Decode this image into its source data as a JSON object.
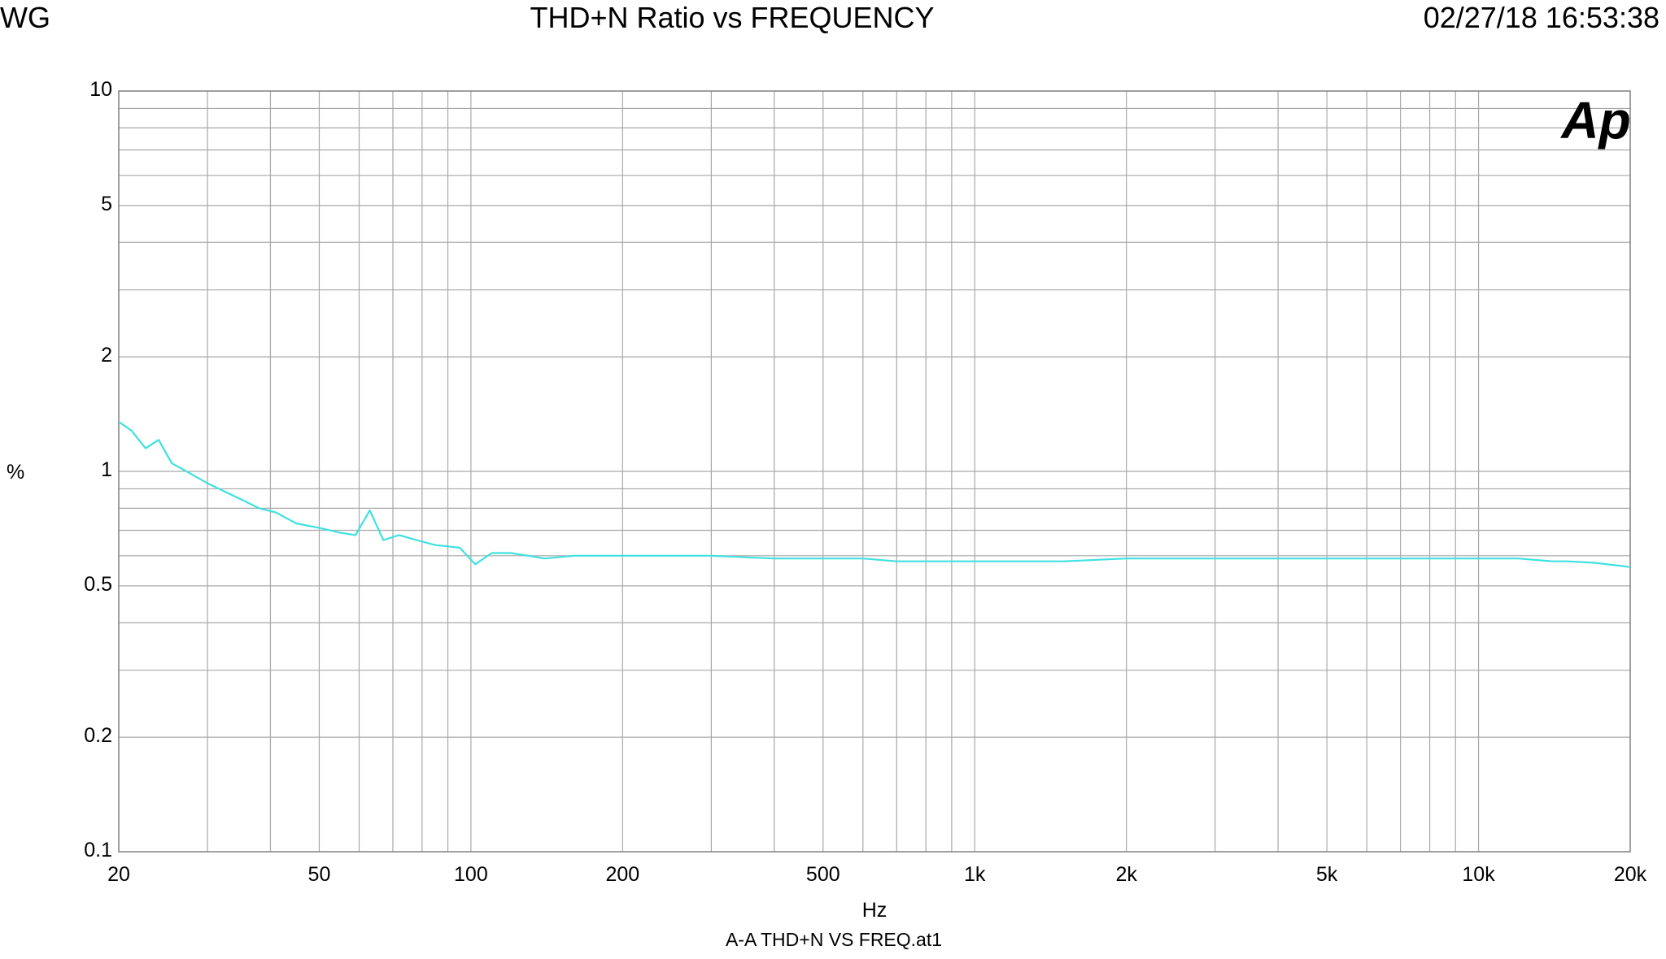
{
  "header": {
    "left": "WG",
    "title": "THD+N Ratio vs FREQUENCY",
    "timestamp": "02/27/18 16:53:38"
  },
  "logo": {
    "text": "Ap",
    "color": "#1a1ae6"
  },
  "chart_data": {
    "type": "line",
    "title": "THD+N Ratio vs FREQUENCY",
    "xlabel": "Hz",
    "ylabel": "%",
    "footer": "A-A THD+N VS FREQ.at1",
    "x_scale": "log",
    "y_scale": "log",
    "xlim": [
      20,
      20000
    ],
    "ylim": [
      0.1,
      10
    ],
    "grid": true,
    "x_ticks": [
      {
        "value": 20,
        "label": "20"
      },
      {
        "value": 50,
        "label": "50"
      },
      {
        "value": 100,
        "label": "100"
      },
      {
        "value": 200,
        "label": "200"
      },
      {
        "value": 500,
        "label": "500"
      },
      {
        "value": 1000,
        "label": "1k"
      },
      {
        "value": 2000,
        "label": "2k"
      },
      {
        "value": 5000,
        "label": "5k"
      },
      {
        "value": 10000,
        "label": "10k"
      },
      {
        "value": 20000,
        "label": "20k"
      }
    ],
    "y_ticks": [
      {
        "value": 0.1,
        "label": "0.1"
      },
      {
        "value": 0.2,
        "label": "0.2"
      },
      {
        "value": 0.5,
        "label": "0.5"
      },
      {
        "value": 1,
        "label": "1"
      },
      {
        "value": 2,
        "label": "2"
      },
      {
        "value": 5,
        "label": "5"
      },
      {
        "value": 10,
        "label": "10"
      }
    ],
    "series": [
      {
        "color": "#40e0e0",
        "points": [
          [
            20,
            1.35
          ],
          [
            21.2,
            1.28
          ],
          [
            22.6,
            1.15
          ],
          [
            24,
            1.21
          ],
          [
            25.5,
            1.05
          ],
          [
            28,
            0.98
          ],
          [
            30,
            0.93
          ],
          [
            34,
            0.86
          ],
          [
            38,
            0.8
          ],
          [
            41,
            0.78
          ],
          [
            45,
            0.73
          ],
          [
            50,
            0.71
          ],
          [
            55,
            0.69
          ],
          [
            59,
            0.68
          ],
          [
            63,
            0.79
          ],
          [
            67,
            0.66
          ],
          [
            72,
            0.68
          ],
          [
            78,
            0.66
          ],
          [
            85,
            0.64
          ],
          [
            95,
            0.63
          ],
          [
            102,
            0.57
          ],
          [
            110,
            0.61
          ],
          [
            120,
            0.61
          ],
          [
            130,
            0.6
          ],
          [
            140,
            0.59
          ],
          [
            160,
            0.6
          ],
          [
            200,
            0.6
          ],
          [
            300,
            0.6
          ],
          [
            400,
            0.59
          ],
          [
            600,
            0.59
          ],
          [
            700,
            0.58
          ],
          [
            1000,
            0.58
          ],
          [
            1500,
            0.58
          ],
          [
            2000,
            0.59
          ],
          [
            2500,
            0.59
          ],
          [
            3000,
            0.59
          ],
          [
            5000,
            0.59
          ],
          [
            7000,
            0.59
          ],
          [
            9000,
            0.59
          ],
          [
            10000,
            0.59
          ],
          [
            12000,
            0.59
          ],
          [
            14000,
            0.58
          ],
          [
            15000,
            0.58
          ],
          [
            17000,
            0.575
          ],
          [
            19000,
            0.565
          ],
          [
            20000,
            0.56
          ]
        ]
      }
    ]
  }
}
